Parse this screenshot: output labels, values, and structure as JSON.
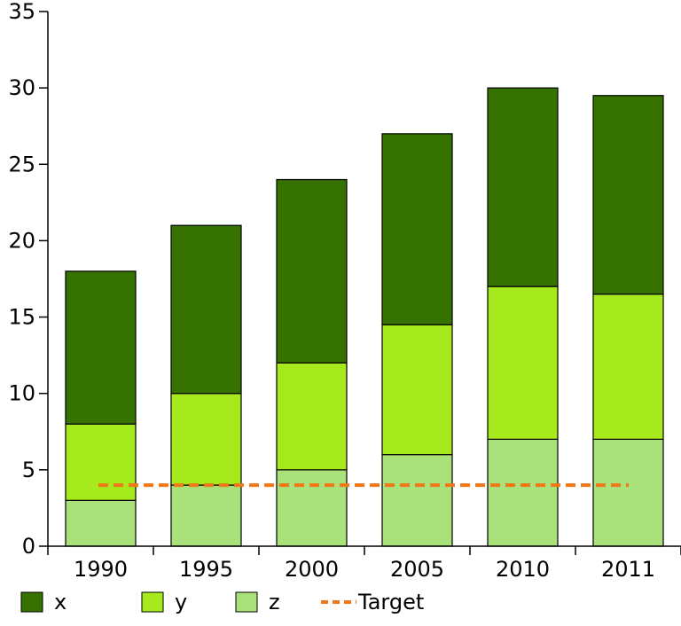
{
  "chart_data": {
    "type": "bar",
    "stacked": true,
    "categories": [
      "1990",
      "1995",
      "2000",
      "2005",
      "2010",
      "2011"
    ],
    "series": [
      {
        "name": "z",
        "color": "#a9e27a",
        "values": [
          3,
          4,
          5,
          6,
          7,
          7
        ]
      },
      {
        "name": "y",
        "color": "#a6e91d",
        "values": [
          5,
          6,
          7,
          8.5,
          10,
          9.5
        ]
      },
      {
        "name": "x",
        "color": "#367200",
        "values": [
          10,
          11,
          12,
          12.5,
          13,
          13
        ]
      }
    ],
    "target": {
      "name": "Target",
      "value": 4,
      "color": "#f07818"
    },
    "ylim": [
      0,
      35
    ],
    "yticks": [
      "0",
      "5",
      "10",
      "15",
      "20",
      "25",
      "30",
      "35"
    ],
    "grid": false,
    "legend_position": "bottom",
    "legend": [
      {
        "label": "x",
        "kind": "swatch",
        "color": "#367200"
      },
      {
        "label": "y",
        "kind": "swatch",
        "color": "#a6e91d"
      },
      {
        "label": "z",
        "kind": "swatch",
        "color": "#a9e27a"
      },
      {
        "label": "Target",
        "kind": "dashed-line",
        "color": "#f07818"
      }
    ]
  }
}
